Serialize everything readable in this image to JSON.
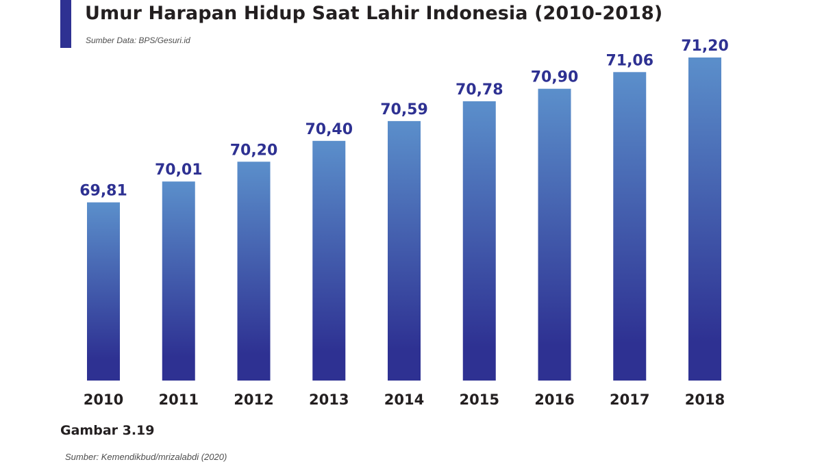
{
  "header": {
    "title": "Umur Harapan Hidup Saat Lahir Indonesia (2010-2018)",
    "subtitle": "Sumber Data: BPS/Gesuri.id"
  },
  "footer": {
    "caption": "Gambar 3.19",
    "source": "Sumber: Kemendikbud/mrizalabdi (2020)"
  },
  "colors": {
    "accent": "#2e3192",
    "bar_top": "#5b8fcb",
    "bar_bottom": "#2e3192"
  },
  "chart_data": {
    "type": "bar",
    "title": "Umur Harapan Hidup Saat Lahir Indonesia (2010-2018)",
    "xlabel": "",
    "ylabel": "",
    "categories": [
      "2010",
      "2011",
      "2012",
      "2013",
      "2014",
      "2015",
      "2016",
      "2017",
      "2018"
    ],
    "values": [
      69.81,
      70.01,
      70.2,
      70.4,
      70.59,
      70.78,
      70.9,
      71.06,
      71.2
    ],
    "value_labels": [
      "69,81",
      "70,01",
      "70,20",
      "70,40",
      "70,59",
      "70,78",
      "70,90",
      "71,06",
      "71,20"
    ],
    "ylim": [
      68.1,
      71.2
    ],
    "grid": false,
    "legend": "none"
  }
}
